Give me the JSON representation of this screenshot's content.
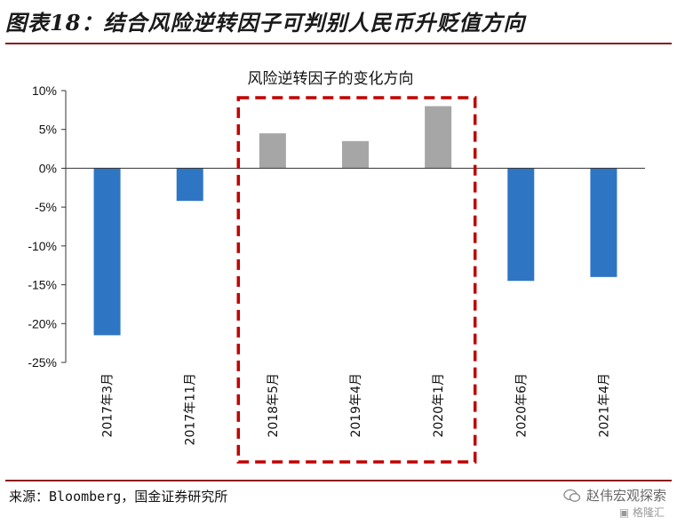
{
  "header": {
    "title": "图表18：结合风险逆转因子可判别人民币升贬值方向"
  },
  "footer": {
    "source": "来源：Bloomberg，国金证券研究所",
    "watermark": "赵伟宏观探索",
    "watermark_sub": "格隆汇"
  },
  "icons": {
    "watermark": "wechat-bubble-icon",
    "watermark_sub": "gelonghui-logo-icon"
  },
  "colors": {
    "negative": "#2e75c4",
    "positive": "#a6a6a6",
    "highlight_box": "#c00000",
    "rule": "#8c1c1c"
  },
  "chart_data": {
    "type": "bar",
    "title": "风险逆转因子的变化方向",
    "categories": [
      "2017年3月",
      "2017年11月",
      "2018年5月",
      "2019年4月",
      "2020年1月",
      "2020年6月",
      "2021年4月"
    ],
    "values": [
      -21.5,
      -4.2,
      4.5,
      3.5,
      8.0,
      -14.5,
      -14.0
    ],
    "yticks": [
      "10%",
      "5%",
      "0%",
      "-5%",
      "-10%",
      "-15%",
      "-20%",
      "-25%"
    ],
    "ylim": [
      -25,
      10
    ],
    "xlabel": "",
    "ylabel": "",
    "highlighted_categories": [
      "2018年5月",
      "2019年4月",
      "2020年1月"
    ],
    "grid": false
  }
}
